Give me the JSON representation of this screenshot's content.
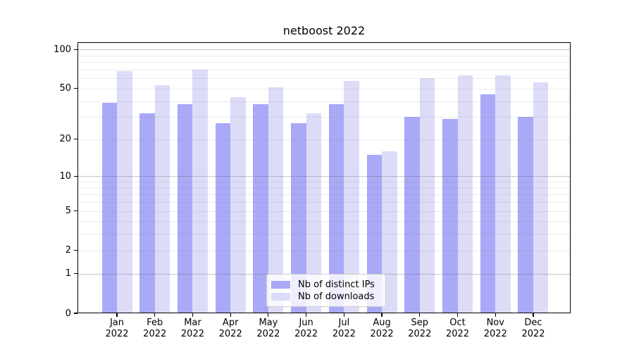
{
  "figure_title": "netboost 2022",
  "chart_data": {
    "type": "bar",
    "title": "netboost 2022",
    "categories": [
      "Jan",
      "Feb",
      "Mar",
      "Apr",
      "May",
      "Jun",
      "Jul",
      "Aug",
      "Sep",
      "Oct",
      "Nov",
      "Dec"
    ],
    "category_year": "2022",
    "series": [
      {
        "name": "Nb of distinct IPs",
        "color": "#a9a9f7",
        "values": [
          39,
          32,
          38,
          27,
          38,
          27,
          38,
          15,
          30,
          29,
          45,
          30
        ]
      },
      {
        "name": "Nb of downloads",
        "color": "#dcdcf9",
        "values": [
          68,
          53,
          70,
          43,
          51,
          32,
          57,
          16,
          60,
          63,
          63,
          56
        ]
      }
    ],
    "xlabel": "",
    "ylabel": "",
    "yscale": "log1p",
    "ylim": [
      0,
      113.8
    ],
    "yticks_labeled": [
      0,
      1,
      2,
      5,
      10,
      20,
      50,
      100
    ],
    "yticks_major_grid": [
      1,
      10,
      100
    ],
    "yticks_minor_grid": [
      2,
      3,
      4,
      5,
      6,
      7,
      8,
      9,
      20,
      30,
      40,
      50,
      60,
      70,
      80,
      90
    ],
    "grid": true,
    "legend_position": "lower center"
  },
  "colors": {
    "bar_distinct_ips": "#a9a9f7",
    "bar_downloads": "#dcdcf9",
    "grid_major": "#c9c9c9",
    "grid_minor": "#ececec",
    "axis": "#000000",
    "background": "#ffffff"
  }
}
